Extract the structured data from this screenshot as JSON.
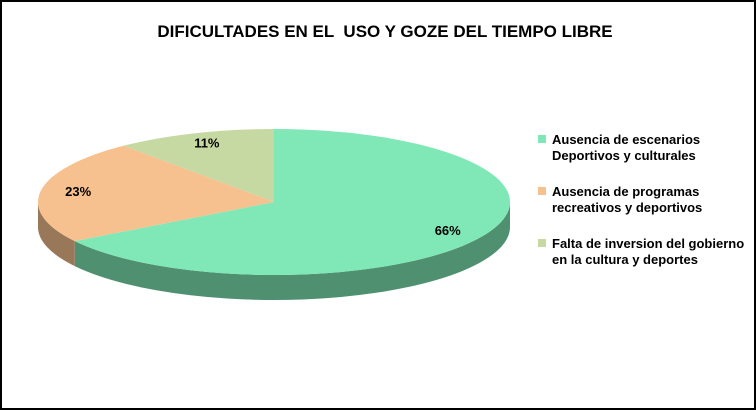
{
  "chart_data": {
    "type": "pie",
    "title": "DIFICULTADES EN EL  USO Y GOZE DEL TIEMPO LIBRE",
    "categories": [
      "Ausencia de escenarios Deportivos y culturales",
      "Ausencia de programas recreativos y deportivos",
      "Falta de inversion del gobierno en la cultura y deportes"
    ],
    "values": [
      66,
      23,
      11
    ],
    "value_labels": [
      "66%",
      "23%",
      "11%"
    ],
    "colors": [
      "#80e8b6",
      "#f6c08f",
      "#c6d9a2"
    ]
  }
}
